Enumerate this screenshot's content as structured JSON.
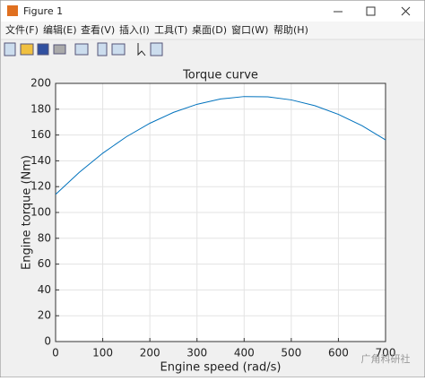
{
  "window": {
    "title": "Figure 1",
    "menu": [
      "文件(F)",
      "编辑(E)",
      "查看(V)",
      "插入(I)",
      "工具(T)",
      "桌面(D)",
      "窗口(W)",
      "帮助(H)"
    ]
  },
  "watermark": "广角科研社",
  "chart_data": {
    "type": "line",
    "title": "Torque curve",
    "x_label": "Engine speed (rad/s)",
    "y_label": "Engine torque (Nm)",
    "x": [
      0,
      50,
      100,
      150,
      200,
      250,
      300,
      350,
      400,
      450,
      500,
      550,
      600,
      650,
      700
    ],
    "values": [
      114,
      131.0,
      145.9,
      158.6,
      169.1,
      177.5,
      183.8,
      187.9,
      189.8,
      189.6,
      187.2,
      182.7,
      176.0,
      167.2,
      156.2
    ],
    "color": "#0072bd",
    "xlim": [
      0,
      700
    ],
    "xticks": [
      0,
      100,
      200,
      300,
      400,
      500,
      600,
      700
    ],
    "ylim": [
      0,
      200
    ],
    "yticks": [
      0,
      20,
      40,
      60,
      80,
      100,
      120,
      140,
      160,
      180,
      200
    ],
    "grid": true
  }
}
